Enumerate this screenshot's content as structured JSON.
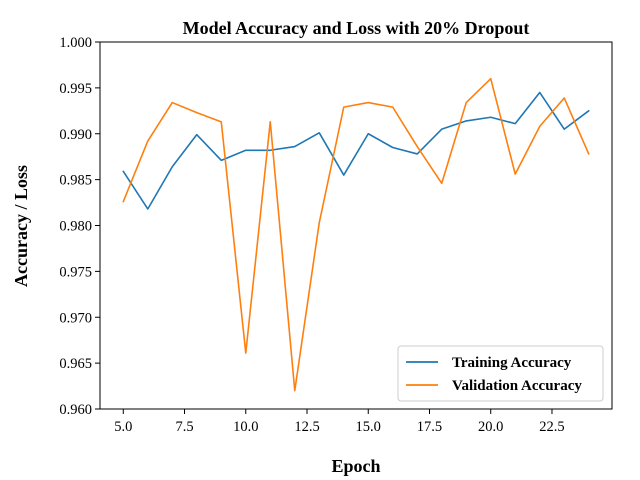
{
  "chart_data": {
    "type": "line",
    "title": "Model Accuracy and Loss with 20% Dropout",
    "xlabel": "Epoch",
    "ylabel": "Accuracy / Loss",
    "xlim": [
      4.05,
      24.95
    ],
    "ylim": [
      0.96,
      1.0
    ],
    "xticks": [
      5.0,
      7.5,
      10.0,
      12.5,
      15.0,
      17.5,
      20.0,
      22.5
    ],
    "xtick_labels": [
      "5.0",
      "7.5",
      "10.0",
      "12.5",
      "15.0",
      "17.5",
      "20.0",
      "22.5"
    ],
    "yticks": [
      0.96,
      0.965,
      0.97,
      0.975,
      0.98,
      0.985,
      0.99,
      0.995,
      1.0
    ],
    "ytick_labels": [
      "0.960",
      "0.965",
      "0.970",
      "0.975",
      "0.980",
      "0.985",
      "0.990",
      "0.995",
      "1.000"
    ],
    "grid": false,
    "legend_position": "bottom-right",
    "x": [
      5,
      6,
      7,
      8,
      9,
      10,
      11,
      12,
      13,
      14,
      15,
      16,
      17,
      18,
      19,
      20,
      21,
      22,
      23,
      24
    ],
    "series": [
      {
        "name": "Training Accuracy",
        "color": "#1f77b4",
        "values": [
          0.9859,
          0.9818,
          0.9864,
          0.9899,
          0.9871,
          0.9882,
          0.9882,
          0.9886,
          0.9901,
          0.9855,
          0.99,
          0.9885,
          0.9878,
          0.9905,
          0.9914,
          0.9918,
          0.9911,
          0.9945,
          0.9905,
          0.9925
        ]
      },
      {
        "name": "Validation Accuracy",
        "color": "#ff7f0e",
        "values": [
          0.9826,
          0.9892,
          0.9934,
          0.9923,
          0.9913,
          0.9661,
          0.9913,
          0.962,
          0.9803,
          0.9929,
          0.9934,
          0.9929,
          0.9886,
          0.9846,
          0.9934,
          0.996,
          0.9856,
          0.9908,
          0.9939,
          0.9878
        ]
      }
    ]
  }
}
